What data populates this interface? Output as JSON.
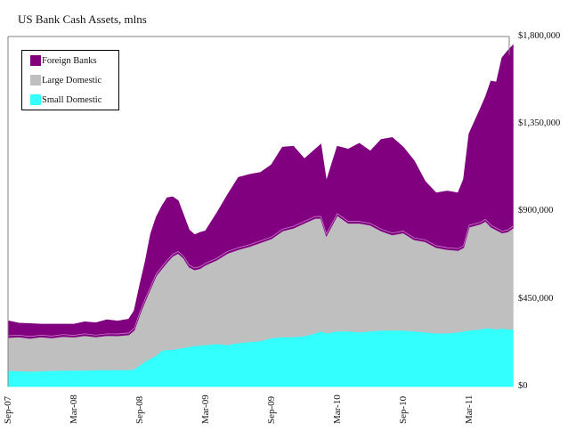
{
  "chart_data": {
    "type": "area",
    "stacked": true,
    "title": "US Bank Cash Assets, mlns",
    "xlabel": "",
    "ylabel": "",
    "ylim": [
      0,
      1800000
    ],
    "y_ticks": [
      "$1,800,000",
      "$1,350,000",
      "$900,000",
      "$450,000",
      "$0"
    ],
    "y_tick_values": [
      1800000,
      1350000,
      900000,
      450000,
      0
    ],
    "y_axis_side": "right",
    "x_ticks": [
      "Sep-07",
      "Mar-08",
      "Sep-08",
      "Mar-09",
      "Sep-09",
      "Mar-10",
      "Sep-10",
      "Mar-11"
    ],
    "x_tick_months": [
      0,
      6,
      12,
      18,
      24,
      30,
      36,
      42
    ],
    "x_unit": "months since Sep-07",
    "grid": false,
    "legend_position": "top-left",
    "x": [
      0,
      1,
      2,
      3,
      4,
      5,
      6,
      7,
      8,
      9,
      10,
      11,
      11.5,
      12,
      12.5,
      13,
      13.5,
      14,
      14.5,
      15,
      15.5,
      16,
      16.5,
      17,
      17.5,
      18,
      19,
      20,
      21,
      22,
      23,
      24,
      25,
      26,
      27,
      28,
      28.5,
      29,
      30,
      31,
      32,
      33,
      34,
      35,
      36,
      37,
      38,
      39,
      40,
      41,
      41.5,
      42,
      43,
      43.5,
      44,
      44.5,
      45,
      45.5,
      46
    ],
    "series": [
      {
        "name": "Small Domestic",
        "color": "#33FFFF",
        "values": [
          82000,
          80000,
          78000,
          80000,
          82000,
          83000,
          84000,
          84000,
          85000,
          86000,
          86000,
          86000,
          90000,
          110000,
          130000,
          145000,
          160000,
          185000,
          190000,
          190000,
          195000,
          200000,
          205000,
          210000,
          212000,
          215000,
          220000,
          215000,
          225000,
          230000,
          235000,
          250000,
          255000,
          255000,
          260000,
          275000,
          285000,
          275000,
          285000,
          285000,
          280000,
          285000,
          290000,
          290000,
          290000,
          285000,
          280000,
          275000,
          275000,
          280000,
          285000,
          290000,
          295000,
          300000,
          300000,
          295000,
          300000,
          295000,
          295000
        ]
      },
      {
        "name": "Large Domestic",
        "color": "#BFBFBF",
        "values": [
          170000,
          175000,
          170000,
          175000,
          168000,
          175000,
          170000,
          178000,
          170000,
          176000,
          175000,
          180000,
          200000,
          260000,
          310000,
          360000,
          410000,
          420000,
          450000,
          480000,
          490000,
          460000,
          410000,
          390000,
          395000,
          410000,
          430000,
          470000,
          480000,
          490000,
          505000,
          510000,
          545000,
          560000,
          580000,
          590000,
          580000,
          500000,
          595000,
          555000,
          560000,
          545000,
          510000,
          490000,
          500000,
          470000,
          465000,
          440000,
          430000,
          420000,
          430000,
          530000,
          540000,
          550000,
          520000,
          510000,
          490000,
          500000,
          520000
        ]
      },
      {
        "name": "Foreign Banks",
        "color": "#800080",
        "values": [
          85000,
          70000,
          75000,
          65000,
          70000,
          62000,
          66000,
          70000,
          72000,
          80000,
          75000,
          80000,
          100000,
          150000,
          200000,
          280000,
          300000,
          320000,
          330000,
          305000,
          270000,
          220000,
          190000,
          180000,
          185000,
          175000,
          240000,
          300000,
          370000,
          370000,
          360000,
          380000,
          430000,
          420000,
          330000,
          355000,
          380000,
          280000,
          355000,
          380000,
          410000,
          380000,
          470000,
          500000,
          440000,
          405000,
          310000,
          280000,
          300000,
          295000,
          350000,
          480000,
          590000,
          640000,
          750000,
          760000,
          900000,
          930000,
          940000
        ]
      }
    ],
    "totals_note": "stacked order bottom-to-top: Small Domestic, Large Domestic, Foreign Banks"
  },
  "legend": {
    "items": [
      {
        "label": "Foreign Banks",
        "color": "#800080"
      },
      {
        "label": "Large Domestic",
        "color": "#BFBFBF"
      },
      {
        "label": "Small Domestic",
        "color": "#33FFFF"
      }
    ]
  }
}
